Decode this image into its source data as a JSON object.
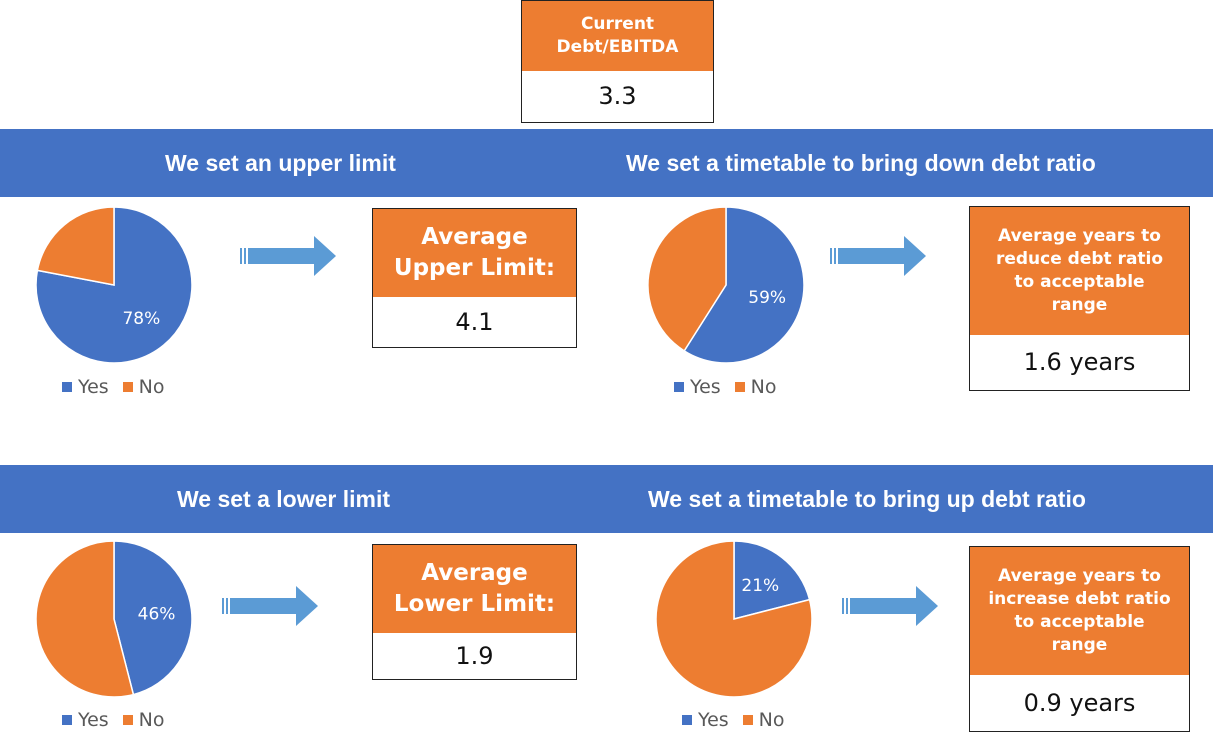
{
  "colors": {
    "yes": "#4472C4",
    "no": "#ED7D31",
    "banner": "#4472C4",
    "box_head": "#ED7D31",
    "arrow": "#5B9BD5"
  },
  "top_box": {
    "label_line1": "Current",
    "label_line2": "Debt/EBITDA",
    "value": "3.3"
  },
  "rows": [
    {
      "banner_left": "We set an upper limit",
      "banner_right": "We set a timetable to bring down debt ratio"
    },
    {
      "banner_left": "We set a lower limit",
      "banner_right": "We set a timetable to bring up debt ratio"
    }
  ],
  "boxes": {
    "upper_limit": {
      "label_line1": "Average",
      "label_line2": "Upper Limit:",
      "value": "4.1"
    },
    "reduce_years": {
      "label_lines": [
        "Average years to",
        "reduce debt ratio",
        "to acceptable",
        "range"
      ],
      "value": "1.6 years"
    },
    "lower_limit": {
      "label_line1": "Average",
      "label_line2": "Lower Limit:",
      "value": "1.9"
    },
    "increase_years": {
      "label_lines": [
        "Average years to",
        "increase debt ratio",
        "to acceptable",
        "range"
      ],
      "value": "0.9 years"
    }
  },
  "legend": {
    "yes": "Yes",
    "no": "No"
  },
  "chart_data": [
    {
      "type": "pie",
      "title": "",
      "categories": [
        "Yes",
        "No"
      ],
      "values": [
        78,
        22
      ],
      "labels": [
        "78%",
        ""
      ]
    },
    {
      "type": "pie",
      "title": "",
      "categories": [
        "Yes",
        "No"
      ],
      "values": [
        59,
        41
      ],
      "labels": [
        "59%",
        ""
      ]
    },
    {
      "type": "pie",
      "title": "",
      "categories": [
        "Yes",
        "No"
      ],
      "values": [
        46,
        54
      ],
      "labels": [
        "46%",
        ""
      ]
    },
    {
      "type": "pie",
      "title": "",
      "categories": [
        "Yes",
        "No"
      ],
      "values": [
        21,
        79
      ],
      "labels": [
        "21%",
        ""
      ]
    }
  ]
}
